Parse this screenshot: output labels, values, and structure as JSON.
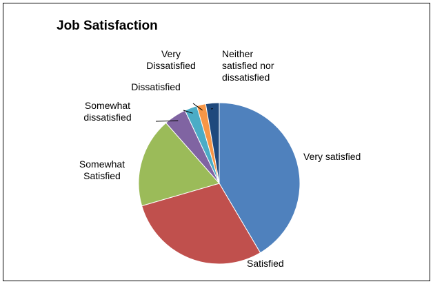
{
  "chart_data": {
    "type": "pie",
    "title": "Job Satisfaction",
    "slices": [
      {
        "label": "Very satisfied",
        "value": 41.5,
        "color": "#4F81BD"
      },
      {
        "label": "Satisfied",
        "value": 29.0,
        "color": "#C0504D"
      },
      {
        "label": "Somewhat Satisfied",
        "value": 18.0,
        "color": "#9BBB59"
      },
      {
        "label": "Somewhat dissatisfied",
        "value": 4.5,
        "color": "#8064A2"
      },
      {
        "label": "Dissatisfied",
        "value": 2.5,
        "color": "#4BACC6"
      },
      {
        "label": "Very Dissatisfied",
        "value": 1.8,
        "color": "#F79646"
      },
      {
        "label": "Neither satisfied nor dissatisfied",
        "value": 2.7,
        "color": "#1F497D"
      }
    ],
    "display_labels": [
      [
        "Very satisfied"
      ],
      [
        "Satisfied"
      ],
      [
        "Somewhat",
        "Satisfied"
      ],
      [
        "Somewhat",
        "dissatisfied"
      ],
      [
        "Dissatisfied"
      ],
      [
        "Very",
        "Dissatisfied"
      ],
      [
        "Neither",
        "satisfied nor",
        "dissatisfied"
      ]
    ],
    "legend": "none"
  }
}
